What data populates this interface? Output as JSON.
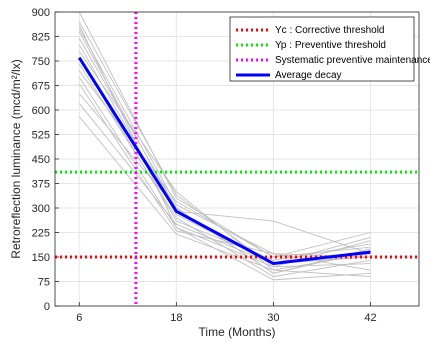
{
  "chart_data": {
    "type": "line",
    "xlabel": "Time (Months)",
    "ylabel": "Retroreflection luminance (mcd/m²/lx)",
    "xlim": [
      3,
      48
    ],
    "ylim": [
      0,
      900
    ],
    "xticks": [
      "6",
      "18",
      "30",
      "42"
    ],
    "yticks": [
      "0",
      "75",
      "150",
      "225",
      "300",
      "375",
      "450",
      "525",
      "600",
      "675",
      "750",
      "825",
      "900"
    ],
    "grid": true,
    "legend_position": "top-right",
    "thresholds": [
      {
        "name": "Yc : Corrective threshold",
        "y": 150,
        "color": "#ff0000",
        "style": "dotted"
      },
      {
        "name": "Yp : Preventive threshold",
        "y": 410,
        "color": "#00ee00",
        "style": "dotted"
      }
    ],
    "vertical_lines": [
      {
        "name": "Systematic preventive maintenance",
        "x": 13,
        "color": "#ff00ff",
        "style": "dotted"
      }
    ],
    "average": {
      "name": "Average decay",
      "color": "#0000ff",
      "x": [
        6,
        18,
        30,
        42
      ],
      "y": [
        760,
        290,
        130,
        165
      ]
    },
    "individual_color": "#c0c0c0",
    "individual_series": [
      {
        "x": [
          6,
          18,
          30,
          42
        ],
        "y": [
          900,
          330,
          150,
          180
        ]
      },
      {
        "x": [
          6,
          18,
          30,
          42
        ],
        "y": [
          870,
          340,
          120,
          200
        ]
      },
      {
        "x": [
          6,
          18,
          30,
          42
        ],
        "y": [
          850,
          310,
          160,
          150
        ]
      },
      {
        "x": [
          6,
          18,
          30,
          42
        ],
        "y": [
          820,
          300,
          100,
          170
        ]
      },
      {
        "x": [
          6,
          18,
          30,
          42
        ],
        "y": [
          800,
          280,
          130,
          210
        ]
      },
      {
        "x": [
          6,
          18,
          30,
          42
        ],
        "y": [
          780,
          350,
          110,
          160
        ]
      },
      {
        "x": [
          6,
          18,
          30,
          42
        ],
        "y": [
          760,
          260,
          140,
          190
        ]
      },
      {
        "x": [
          6,
          18,
          30,
          42
        ],
        "y": [
          740,
          270,
          90,
          140
        ]
      },
      {
        "x": [
          6,
          18,
          30,
          42
        ],
        "y": [
          720,
          320,
          150,
          225
        ]
      },
      {
        "x": [
          6,
          18,
          30,
          42
        ],
        "y": [
          700,
          240,
          120,
          130
        ]
      },
      {
        "x": [
          6,
          18,
          30,
          42
        ],
        "y": [
          680,
          230,
          160,
          110
        ]
      },
      {
        "x": [
          6,
          18,
          30,
          42
        ],
        "y": [
          650,
          300,
          100,
          175
        ]
      },
      {
        "x": [
          6,
          18,
          30,
          42
        ],
        "y": [
          620,
          250,
          130,
          150
        ]
      },
      {
        "x": [
          6,
          18,
          30,
          42
        ],
        "y": [
          580,
          220,
          110,
          90
        ]
      },
      {
        "x": [
          6,
          18,
          30,
          42
        ],
        "y": [
          840,
          290,
          260,
          160
        ]
      },
      {
        "x": [
          6,
          18,
          30,
          42
        ],
        "y": [
          860,
          240,
          80,
          100
        ]
      }
    ]
  }
}
